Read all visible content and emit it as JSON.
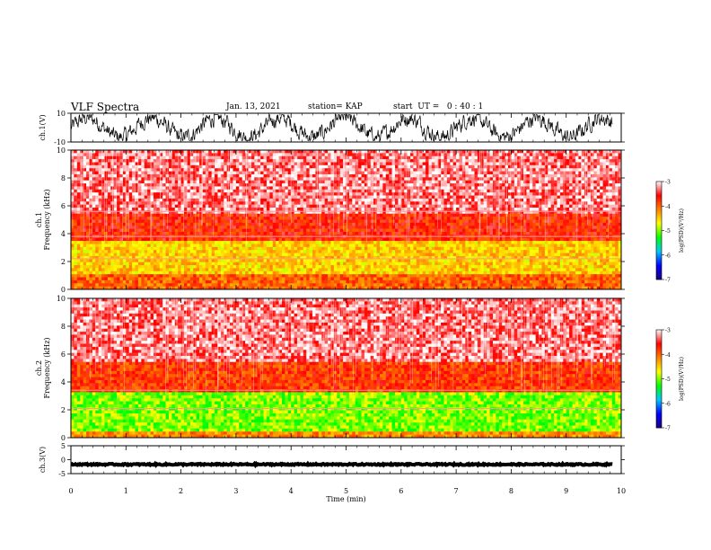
{
  "header": {
    "title": "VLF Spectra",
    "date": "Jan. 13, 2021",
    "station": "station= KAP",
    "start": "start  UT =   0 : 40 : 1"
  },
  "colors": {
    "background": "#ffffff",
    "axis": "#000000",
    "colormap": [
      "#1a0080",
      "#0000ff",
      "#00c8ff",
      "#00ff00",
      "#ffff00",
      "#ff8000",
      "#ff0000",
      "#ffffff"
    ]
  },
  "chart_data": [
    {
      "type": "line",
      "ylabel": "ch.1(V)",
      "ylim": [
        -10,
        10
      ],
      "yticks": [
        "10",
        "-10"
      ],
      "xlim": [
        0,
        10
      ],
      "note": "dense noisy waveform, value range approx -8 to 8"
    },
    {
      "type": "heatmap",
      "ylabel": "ch.1\nFrequency (kHz)",
      "yticks": [
        "0",
        "2",
        "4",
        "6",
        "8",
        "10"
      ],
      "ylim": [
        0,
        10
      ],
      "xlim": [
        0,
        10
      ],
      "colorbar": {
        "label": "log(PSD)(V²/Hz)",
        "ticks": [
          "-3",
          "-4",
          "-5",
          "-6",
          "-7"
        ],
        "range": [
          -7,
          -3
        ]
      },
      "bands": [
        {
          "f_min": 5.5,
          "f_max": 10,
          "level": -3.3
        },
        {
          "f_min": 3.5,
          "f_max": 5.5,
          "level": -3.7
        },
        {
          "f_min": 1.0,
          "f_max": 3.5,
          "level": -4.5
        },
        {
          "f_min": 0,
          "f_max": 1.0,
          "level": -4.0
        }
      ],
      "lines_khz": [
        5.6,
        3.8,
        2.2
      ]
    },
    {
      "type": "heatmap",
      "ylabel": "ch.2\nFrequency (kHz)",
      "yticks": [
        "0",
        "2",
        "4",
        "6",
        "8",
        "10"
      ],
      "ylim": [
        0,
        10
      ],
      "xlim": [
        0,
        10
      ],
      "colorbar": {
        "label": "log(PSD)(V²/Hz)",
        "ticks": [
          "-3",
          "-4",
          "-5",
          "-6",
          "-7"
        ],
        "range": [
          -7,
          -3
        ]
      },
      "bands": [
        {
          "f_min": 5.5,
          "f_max": 10,
          "level": -3.3
        },
        {
          "f_min": 3.2,
          "f_max": 5.5,
          "level": -3.8
        },
        {
          "f_min": 0.5,
          "f_max": 3.2,
          "level": -5.0
        },
        {
          "f_min": 0,
          "f_max": 0.5,
          "level": -4.2
        }
      ],
      "lines_khz": [
        3.4,
        2.1
      ]
    },
    {
      "type": "line",
      "ylabel": "ch.3(V)",
      "ylim": [
        -5,
        5
      ],
      "yticks": [
        "5",
        "0",
        "-5"
      ],
      "xlim": [
        0,
        10
      ],
      "xlabel": "Time (min)",
      "xticks": [
        "0",
        "1",
        "2",
        "3",
        "4",
        "5",
        "6",
        "7",
        "8",
        "9",
        "10"
      ],
      "note": "flat thick trace at approx -1.7 V"
    }
  ]
}
